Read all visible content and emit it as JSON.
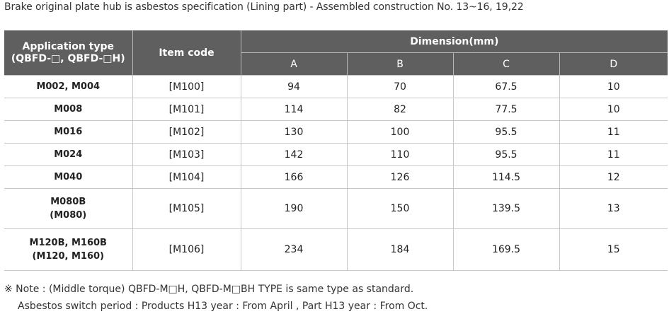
{
  "title": "Brake original plate hub is asbestos specification (Lining part) - Assembled  construction No. 13~16, 19,22",
  "table": {
    "headers": {
      "application_type": [
        "Application type",
        "(QBFD-□, QBFD-□H)"
      ],
      "item_code": "Item code",
      "dimension": "Dimension(mm)",
      "columns": [
        "A",
        "B",
        "C",
        "D"
      ]
    },
    "rows": [
      {
        "app": [
          "M002, M004"
        ],
        "code": "[M100]",
        "a": "94",
        "b": "70",
        "c": "67.5",
        "d": "10"
      },
      {
        "app": [
          "M008"
        ],
        "code": "[M101]",
        "a": "114",
        "b": "82",
        "c": "77.5",
        "d": "10"
      },
      {
        "app": [
          "M016"
        ],
        "code": "[M102]",
        "a": "130",
        "b": "100",
        "c": "95.5",
        "d": "11"
      },
      {
        "app": [
          "M024"
        ],
        "code": "[M103]",
        "a": "142",
        "b": "110",
        "c": "95.5",
        "d": "11"
      },
      {
        "app": [
          "M040"
        ],
        "code": "[M104]",
        "a": "166",
        "b": "126",
        "c": "114.5",
        "d": "12"
      },
      {
        "app": [
          "M080B",
          "(M080)"
        ],
        "code": "[M105]",
        "a": "190",
        "b": "150",
        "c": "139.5",
        "d": "13"
      },
      {
        "app": [
          "M120B, M160B",
          "(M120, M160)"
        ],
        "code": "[M106]",
        "a": "234",
        "b": "184",
        "c": "169.5",
        "d": "15"
      }
    ]
  },
  "notes": {
    "line1": "※ Note : (Middle torque) QBFD-M□H, QBFD-M□BH TYPE is same type as standard.",
    "line2": "Asbestos switch period :  Products H13 year  : From April ,   Part H13 year  : From Oct."
  },
  "colors": {
    "header_bg": "#5f5f5f",
    "header_text": "#ffffff",
    "border": "#c8c8c8"
  }
}
